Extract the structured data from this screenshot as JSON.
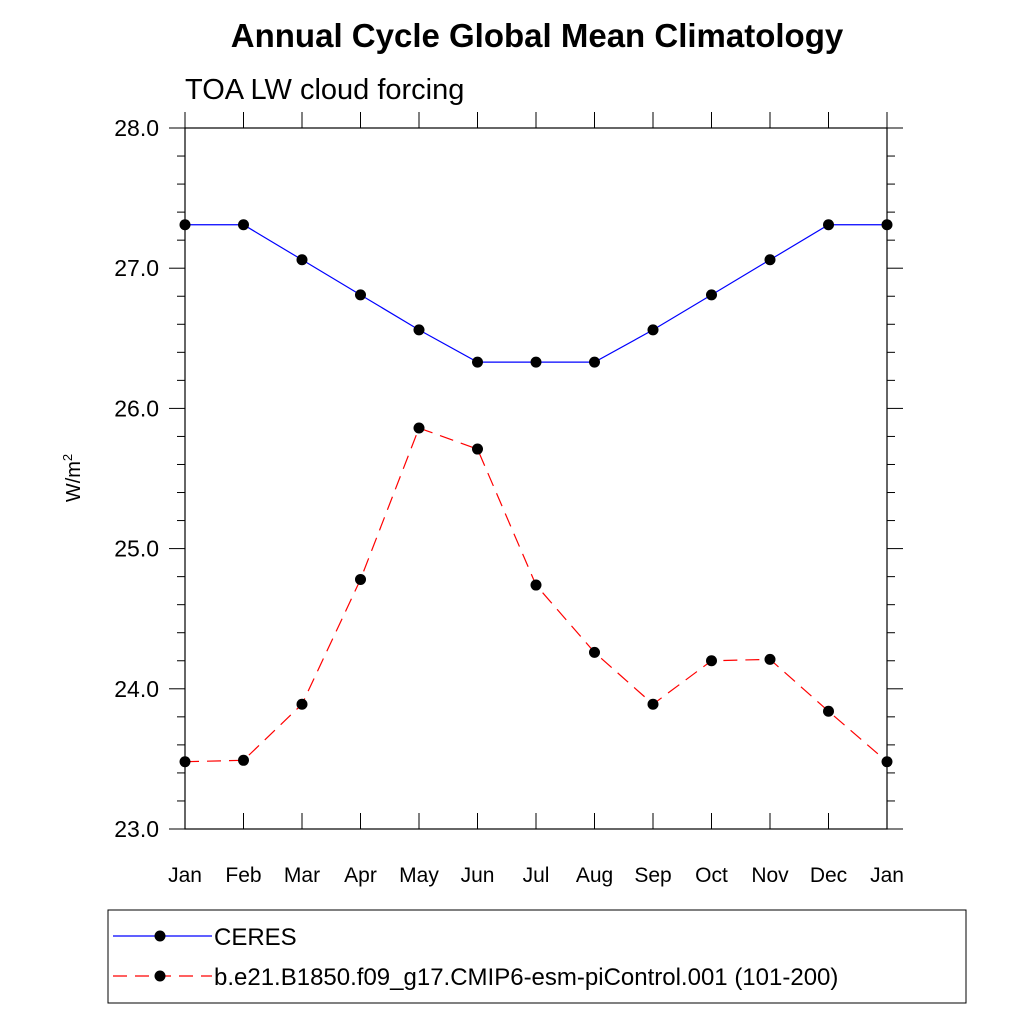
{
  "chart_data": {
    "type": "line",
    "title": "Annual Cycle Global Mean Climatology",
    "subtitle": "TOA LW cloud forcing",
    "ylabel": "W/m",
    "ylabel_sup": "2",
    "xlabel": "",
    "ylim": [
      23.0,
      28.0
    ],
    "yticks": [
      "23.0",
      "24.0",
      "25.0",
      "26.0",
      "27.0",
      "28.0"
    ],
    "categories": [
      "Jan",
      "Feb",
      "Mar",
      "Apr",
      "May",
      "Jun",
      "Jul",
      "Aug",
      "Sep",
      "Oct",
      "Nov",
      "Dec",
      "Jan"
    ],
    "grid": false,
    "legend_position": "bottom",
    "series": [
      {
        "name": "CERES",
        "color": "#0000ff",
        "dash": "solid",
        "marker": "filled-circle",
        "values": [
          27.31,
          27.31,
          27.06,
          26.81,
          26.56,
          26.33,
          26.33,
          26.33,
          26.56,
          26.81,
          27.06,
          27.31,
          27.31
        ]
      },
      {
        "name": "b.e21.B1850.f09_g17.CMIP6-esm-piControl.001 (101-200)",
        "color": "#ff0000",
        "dash": "dashed",
        "marker": "filled-circle",
        "values": [
          23.48,
          23.49,
          23.89,
          24.78,
          25.86,
          25.71,
          24.74,
          24.26,
          23.89,
          24.2,
          24.21,
          23.84,
          23.48
        ]
      }
    ]
  }
}
